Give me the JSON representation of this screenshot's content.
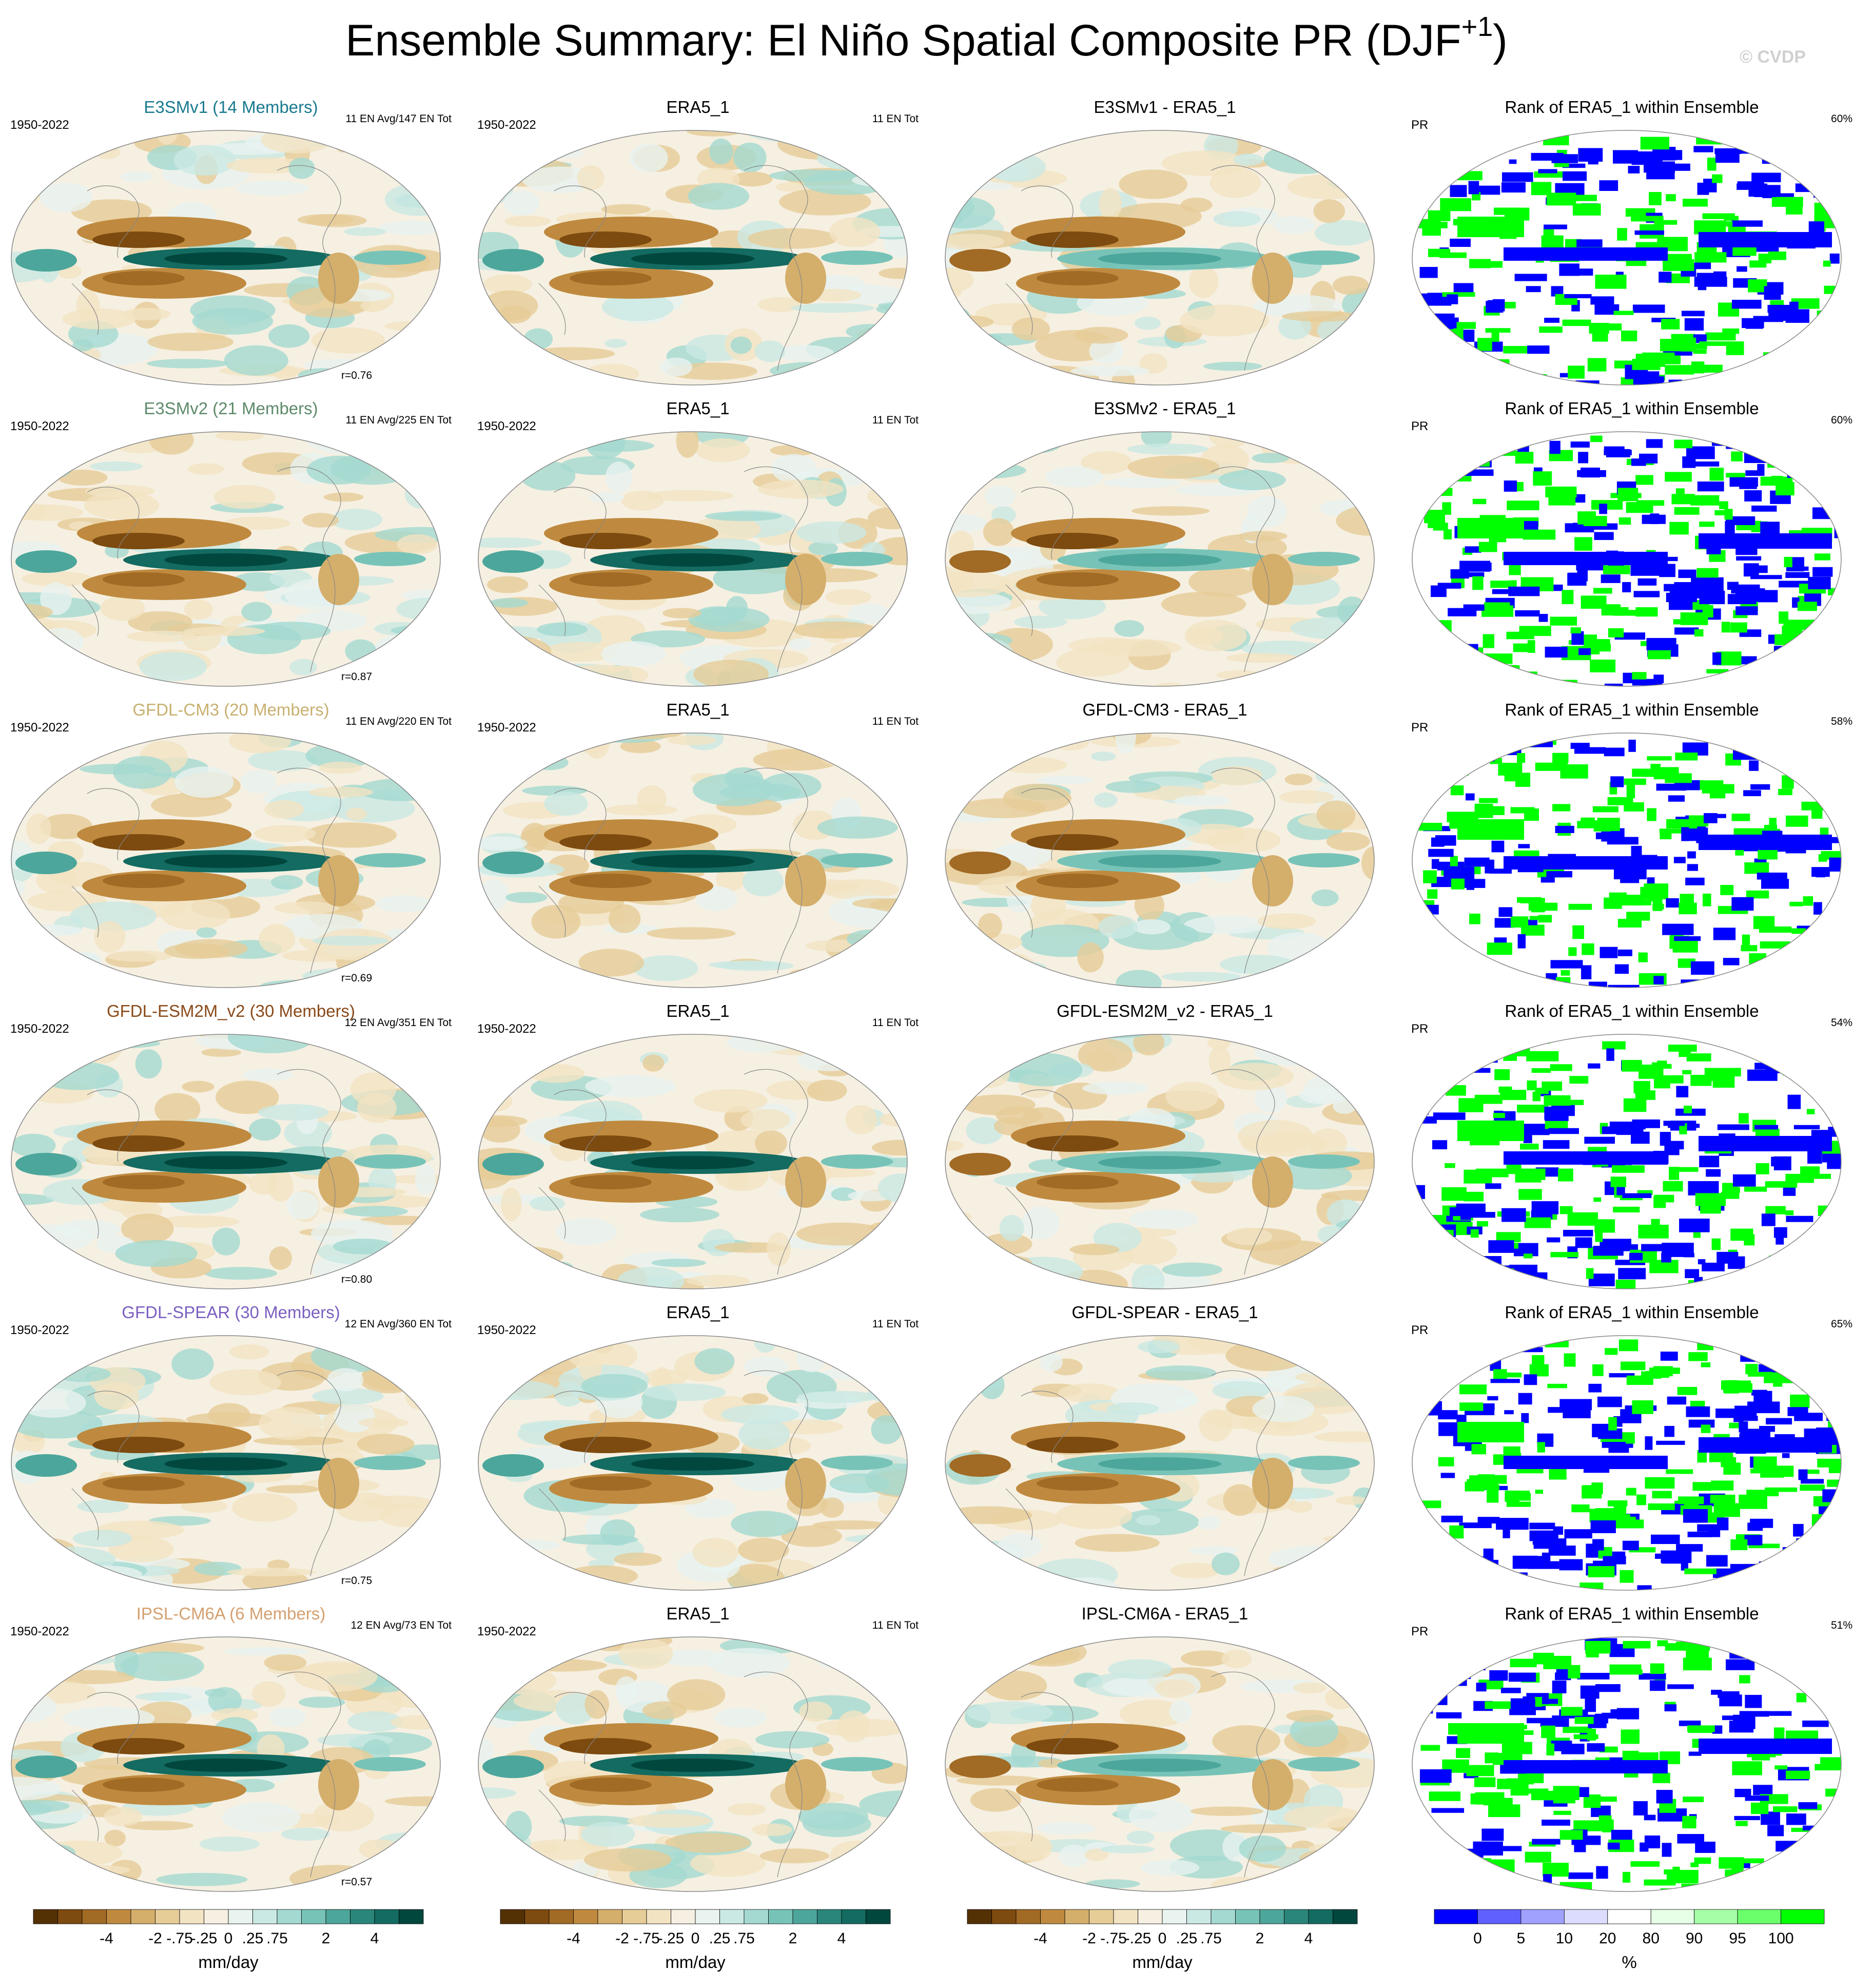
{
  "title": {
    "main": "Ensemble Summary: El Niño Spatial Composite PR (DJF",
    "sup": "+1",
    "close": ")"
  },
  "credit": "© CVDP",
  "colors": {
    "diverging": [
      "#543005",
      "#7d4a0f",
      "#a16a25",
      "#bf8a3f",
      "#d4ae6b",
      "#e6cc97",
      "#f2e3c3",
      "#f6f0e2",
      "#e9f3f0",
      "#cbe9e4",
      "#a4d9d1",
      "#78c3b8",
      "#4ca69b",
      "#2a857b",
      "#136b61",
      "#01473d"
    ],
    "rank": [
      "#0000ff",
      "#6060ff",
      "#a0a0ff",
      "#dcdcff",
      "#ffffff",
      "#e6ffe6",
      "#a6ffa6",
      "#6cff6c",
      "#00ff00"
    ]
  },
  "rows": [
    {
      "model": {
        "title": "E3SMv1 (14 Members)",
        "color": "#1a7a8f",
        "years": "1950-2022",
        "count": "11 EN Avg/147 EN Tot",
        "r": "r=0.76"
      },
      "obs": {
        "title": "ERA5_1",
        "years": "1950-2022",
        "count": "11 EN Tot"
      },
      "diff": {
        "title": "E3SMv1 - ERA5_1"
      },
      "rank": {
        "title": "Rank of ERA5_1 within Ensemble",
        "var": "PR",
        "pct": "60%"
      }
    },
    {
      "model": {
        "title": "E3SMv2 (21 Members)",
        "color": "#5e8a6a",
        "years": "1950-2022",
        "count": "11 EN Avg/225 EN Tot",
        "r": "r=0.87"
      },
      "obs": {
        "title": "ERA5_1",
        "years": "1950-2022",
        "count": "11 EN Tot"
      },
      "diff": {
        "title": "E3SMv2 - ERA5_1"
      },
      "rank": {
        "title": "Rank of ERA5_1 within Ensemble",
        "var": "PR",
        "pct": "60%"
      }
    },
    {
      "model": {
        "title": "GFDL-CM3 (20 Members)",
        "color": "#c8b070",
        "years": "1950-2022",
        "count": "11 EN Avg/220 EN Tot",
        "r": "r=0.69"
      },
      "obs": {
        "title": "ERA5_1",
        "years": "1950-2022",
        "count": "11 EN Tot"
      },
      "diff": {
        "title": "GFDL-CM3 - ERA5_1"
      },
      "rank": {
        "title": "Rank of ERA5_1 within Ensemble",
        "var": "PR",
        "pct": "58%"
      }
    },
    {
      "model": {
        "title": "GFDL-ESM2M_v2 (30 Members)",
        "color": "#8a4a1a",
        "years": "1950-2022",
        "count": "12 EN Avg/351 EN Tot",
        "r": "r=0.80"
      },
      "obs": {
        "title": "ERA5_1",
        "years": "1950-2022",
        "count": "11 EN Tot"
      },
      "diff": {
        "title": "GFDL-ESM2M_v2 - ERA5_1"
      },
      "rank": {
        "title": "Rank of ERA5_1 within Ensemble",
        "var": "PR",
        "pct": "54%"
      }
    },
    {
      "model": {
        "title": "GFDL-SPEAR (30 Members)",
        "color": "#7b5fc0",
        "years": "1950-2022",
        "count": "12 EN Avg/360 EN Tot",
        "r": "r=0.75"
      },
      "obs": {
        "title": "ERA5_1",
        "years": "1950-2022",
        "count": "11 EN Tot"
      },
      "diff": {
        "title": "GFDL-SPEAR - ERA5_1"
      },
      "rank": {
        "title": "Rank of ERA5_1 within Ensemble",
        "var": "PR",
        "pct": "65%"
      }
    },
    {
      "model": {
        "title": "IPSL-CM6A (6 Members)",
        "color": "#d4a070",
        "years": "1950-2022",
        "count": "12 EN Avg/73 EN Tot",
        "r": "r=0.57"
      },
      "obs": {
        "title": "ERA5_1",
        "years": "1950-2022",
        "count": "11 EN Tot"
      },
      "diff": {
        "title": "IPSL-CM6A - ERA5_1"
      },
      "rank": {
        "title": "Rank of ERA5_1 within Ensemble",
        "var": "PR",
        "pct": "51%"
      }
    }
  ],
  "colorbars": [
    {
      "labels": [
        "-4",
        "-2",
        "-.75",
        "-.25",
        "0",
        ".25",
        ".75",
        "2",
        "4"
      ],
      "unit": "mm/day"
    },
    {
      "labels": [
        "-4",
        "-2",
        "-.75",
        "-.25",
        "0",
        ".25",
        ".75",
        "2",
        "4"
      ],
      "unit": "mm/day"
    },
    {
      "labels": [
        "-4",
        "-2",
        "-.75",
        "-.25",
        "0",
        ".25",
        ".75",
        "2",
        "4"
      ],
      "unit": "mm/day"
    },
    {
      "labels": [
        "0",
        "5",
        "10",
        "20",
        "80",
        "90",
        "95",
        "100"
      ],
      "unit": "%"
    }
  ]
}
